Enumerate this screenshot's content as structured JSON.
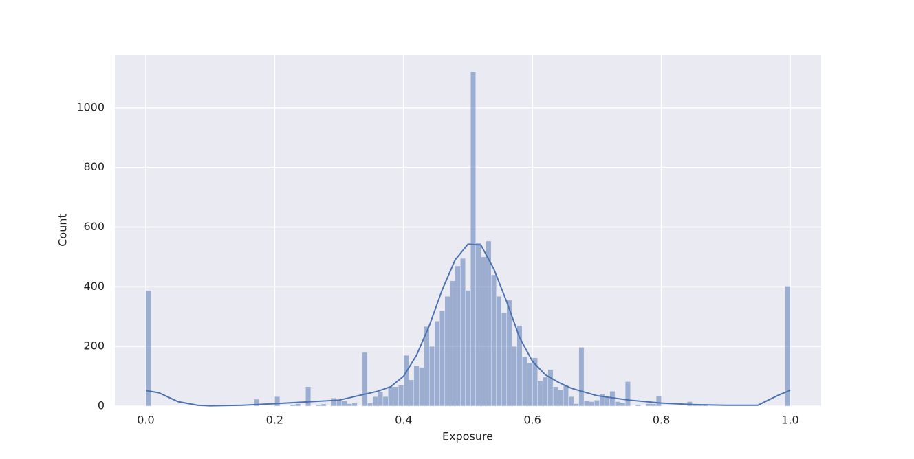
{
  "chart_data": {
    "type": "histogram",
    "x_label": "Exposure",
    "y_label": "Count",
    "bins": [
      0,
      0.008,
      0.016,
      0.024,
      0.032,
      0.04,
      0.048,
      0.056,
      0.064,
      0.072,
      0.08,
      0.088,
      0.096,
      0.104,
      0.112,
      0.12,
      0.128,
      0.136,
      0.144,
      0.152,
      0.16,
      0.168,
      0.176,
      0.184,
      0.192,
      0.2,
      0.208,
      0.216,
      0.224,
      0.232,
      0.24,
      0.248,
      0.256,
      0.264,
      0.272,
      0.28,
      0.288,
      0.296,
      0.304,
      0.312,
      0.32,
      0.328,
      0.336,
      0.344,
      0.352,
      0.36,
      0.368,
      0.376,
      0.384,
      0.392,
      0.4,
      0.408,
      0.416,
      0.424,
      0.432,
      0.44,
      0.448,
      0.456,
      0.464,
      0.472,
      0.48,
      0.488,
      0.496,
      0.504,
      0.512,
      0.52,
      0.528,
      0.536,
      0.544,
      0.552,
      0.56,
      0.568,
      0.576,
      0.584,
      0.592,
      0.6,
      0.608,
      0.616,
      0.624,
      0.632,
      0.64,
      0.648,
      0.656,
      0.664,
      0.672,
      0.68,
      0.688,
      0.696,
      0.704,
      0.712,
      0.72,
      0.728,
      0.736,
      0.744,
      0.752,
      0.76,
      0.768,
      0.776,
      0.784,
      0.792,
      0.8,
      0.808,
      0.816,
      0.824,
      0.832,
      0.84,
      0.848,
      0.856,
      0.864,
      0.872,
      0.88,
      0.888,
      0.896,
      0.904,
      0.912,
      0.92,
      0.928,
      0.936,
      0.944,
      0.952,
      0.96,
      0.968,
      0.976,
      0.984,
      0.992,
      1.0
    ],
    "values": [
      387,
      0,
      0,
      0,
      0,
      0,
      0,
      0,
      0,
      0,
      0,
      0,
      0,
      0,
      0,
      0,
      0,
      0,
      0,
      0,
      0,
      23,
      0,
      0,
      0,
      32,
      0,
      0,
      5,
      8,
      0,
      65,
      0,
      5,
      7,
      0,
      27,
      22,
      18,
      8,
      10,
      0,
      180,
      10,
      32,
      48,
      32,
      65,
      65,
      70,
      170,
      88,
      135,
      130,
      267,
      200,
      285,
      320,
      368,
      420,
      470,
      495,
      388,
      1120,
      548,
      500,
      553,
      440,
      368,
      312,
      355,
      200,
      270,
      165,
      145,
      162,
      85,
      97,
      123,
      65,
      55,
      70,
      32,
      8,
      197,
      18,
      15,
      20,
      40,
      30,
      50,
      15,
      12,
      82,
      0,
      5,
      0,
      8,
      8,
      35,
      0,
      0,
      0,
      0,
      0,
      15,
      8,
      5,
      7,
      0,
      0,
      0,
      0,
      0,
      0,
      0,
      0,
      0,
      0,
      0,
      0,
      0,
      0,
      0,
      402
    ],
    "color": "#4c72b0",
    "kde": {
      "x": [
        0,
        0.02,
        0.05,
        0.08,
        0.1,
        0.15,
        0.2,
        0.25,
        0.3,
        0.33,
        0.36,
        0.38,
        0.4,
        0.42,
        0.44,
        0.46,
        0.48,
        0.5,
        0.52,
        0.54,
        0.56,
        0.58,
        0.6,
        0.62,
        0.64,
        0.66,
        0.7,
        0.75,
        0.8,
        0.85,
        0.9,
        0.95,
        0.98,
        1.0
      ],
      "values": [
        52,
        45,
        15,
        3,
        1,
        3,
        8,
        14,
        20,
        35,
        50,
        65,
        100,
        170,
        270,
        390,
        490,
        543,
        540,
        460,
        350,
        230,
        150,
        105,
        80,
        60,
        35,
        20,
        10,
        5,
        3,
        3,
        35,
        53
      ]
    },
    "xlim": [
      -0.048,
      1.048
    ],
    "ylim": [
      0,
      1177
    ],
    "xticks": [
      {
        "value": 0,
        "label": "0.0"
      },
      0.2,
      0.4,
      0.6,
      0.8,
      {
        "value": 1,
        "label": "1.0"
      }
    ],
    "yticks": [
      0,
      200,
      400,
      600,
      800,
      1000
    ],
    "grid": true
  }
}
